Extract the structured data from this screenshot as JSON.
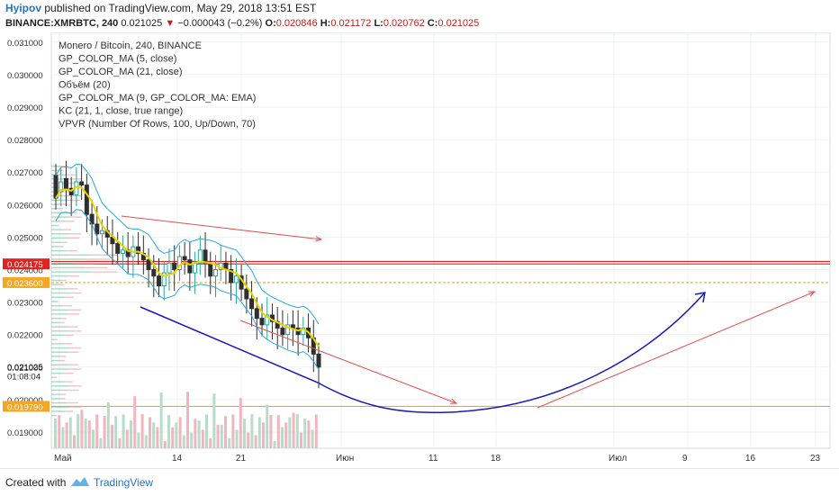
{
  "header": {
    "author": "Hyipov",
    "published_text": "published on TradingView.com, May 29, 2018 13:51 EST",
    "symbol": "BINANCE:XMRBTC, 240",
    "last": "0.021025",
    "arrow": "▼",
    "change": "−0.000043 (−0.2%)",
    "o_label": "O:",
    "o_val": "0.020846",
    "h_label": "H:",
    "h_val": "0.021172",
    "l_label": "L:",
    "l_val": "0.020762",
    "c_label": "C:",
    "c_val": "0.021025"
  },
  "legend": [
    "Monero / Bitcoin, 240, BINANCE",
    "GP_COLOR_MA (5, close)",
    "GP_COLOR_MA (21, close)",
    "Объём (20)",
    "GP_COLOR_MA (9, GP_COLOR_MA: EMA)",
    "KC (21, 1, close, true range)",
    "VPVR (Number Of Rows, 100, Up/Down, 70)"
  ],
  "footer": {
    "created_with": "Created with",
    "brand": "TradingView"
  },
  "colors": {
    "up": "#26a69a",
    "down": "#2f2f2f",
    "ma": "#e6d400",
    "kc": "#2ea8e0",
    "arrow_red": "#e05252",
    "arrow_blue": "#1a1ab8",
    "orange": "#f5a623",
    "red_label": "#e0231f"
  },
  "chart_data": {
    "type": "candlestick",
    "x_ticks": [
      "Май",
      "14",
      "21",
      "Июн",
      "11",
      "18",
      "Июл",
      "9",
      "16",
      "23"
    ],
    "y_ticks": [
      "0.031000",
      "0.030000",
      "0.029000",
      "0.028000",
      "0.027000",
      "0.026000",
      "0.025000",
      "0.024000",
      "0.023000",
      "0.022000",
      "0.021000",
      "0.020000",
      "0.019000"
    ],
    "y_range": [
      0.0185,
      0.0313
    ],
    "price_labels": [
      {
        "value": "0.024175",
        "level": 0.024175,
        "color": "#e0231f"
      },
      {
        "value": "0.023600",
        "level": 0.0236,
        "color": "#f5a623"
      },
      {
        "value": "0.021025",
        "level": 0.021025,
        "color": "none"
      },
      {
        "value": "01:08:04",
        "level": 0.02073,
        "color": "none"
      },
      {
        "value": "0.019790",
        "level": 0.01979,
        "color": "#f5a623"
      }
    ],
    "horizontal_lines": [
      {
        "level": 0.024175,
        "color": "#e0231f",
        "style": "solid"
      },
      {
        "level": 0.02425,
        "color": "#e0231f",
        "style": "solid"
      },
      {
        "level": 0.0236,
        "color": "#f5a623",
        "style": "dashed"
      },
      {
        "level": 0.01979,
        "color": "#f5a623",
        "style": "solid"
      }
    ],
    "price_path": [
      [
        0.0269,
        0.0262
      ],
      [
        0.0264,
        0.0267
      ],
      [
        0.0268,
        0.0265
      ],
      [
        0.0265,
        0.0263
      ],
      [
        0.0263,
        0.0267
      ],
      [
        0.0267,
        0.0266
      ],
      [
        0.0266,
        0.0257
      ],
      [
        0.0257,
        0.0254
      ],
      [
        0.0254,
        0.0251
      ],
      [
        0.0251,
        0.0252
      ],
      [
        0.0252,
        0.025
      ],
      [
        0.025,
        0.0248
      ],
      [
        0.0248,
        0.0245
      ],
      [
        0.0245,
        0.0246
      ],
      [
        0.0246,
        0.0244
      ],
      [
        0.0244,
        0.0247
      ],
      [
        0.0247,
        0.0245
      ],
      [
        0.0245,
        0.0243
      ],
      [
        0.0243,
        0.024
      ],
      [
        0.024,
        0.0238
      ],
      [
        0.0238,
        0.0235
      ],
      [
        0.0235,
        0.0239
      ],
      [
        0.0239,
        0.0242
      ],
      [
        0.0242,
        0.024
      ],
      [
        0.024,
        0.0244
      ],
      [
        0.0244,
        0.0243
      ],
      [
        0.0243,
        0.0239
      ],
      [
        0.0239,
        0.0242
      ],
      [
        0.0242,
        0.0246
      ],
      [
        0.0246,
        0.0242
      ],
      [
        0.0242,
        0.0238
      ],
      [
        0.0238,
        0.024
      ],
      [
        0.024,
        0.0242
      ],
      [
        0.0242,
        0.024
      ],
      [
        0.024,
        0.0236
      ],
      [
        0.0236,
        0.0238
      ],
      [
        0.0238,
        0.0234
      ],
      [
        0.0234,
        0.0231
      ],
      [
        0.0231,
        0.0228
      ],
      [
        0.0228,
        0.0225
      ],
      [
        0.0225,
        0.0223
      ],
      [
        0.0223,
        0.0226
      ],
      [
        0.0226,
        0.0224
      ],
      [
        0.0224,
        0.0222
      ],
      [
        0.0222,
        0.022
      ],
      [
        0.022,
        0.0223
      ],
      [
        0.0223,
        0.0222
      ],
      [
        0.0222,
        0.022
      ],
      [
        0.022,
        0.0222
      ],
      [
        0.0222,
        0.0219
      ],
      [
        0.0219,
        0.0214
      ],
      [
        0.0214,
        0.021
      ]
    ]
  }
}
